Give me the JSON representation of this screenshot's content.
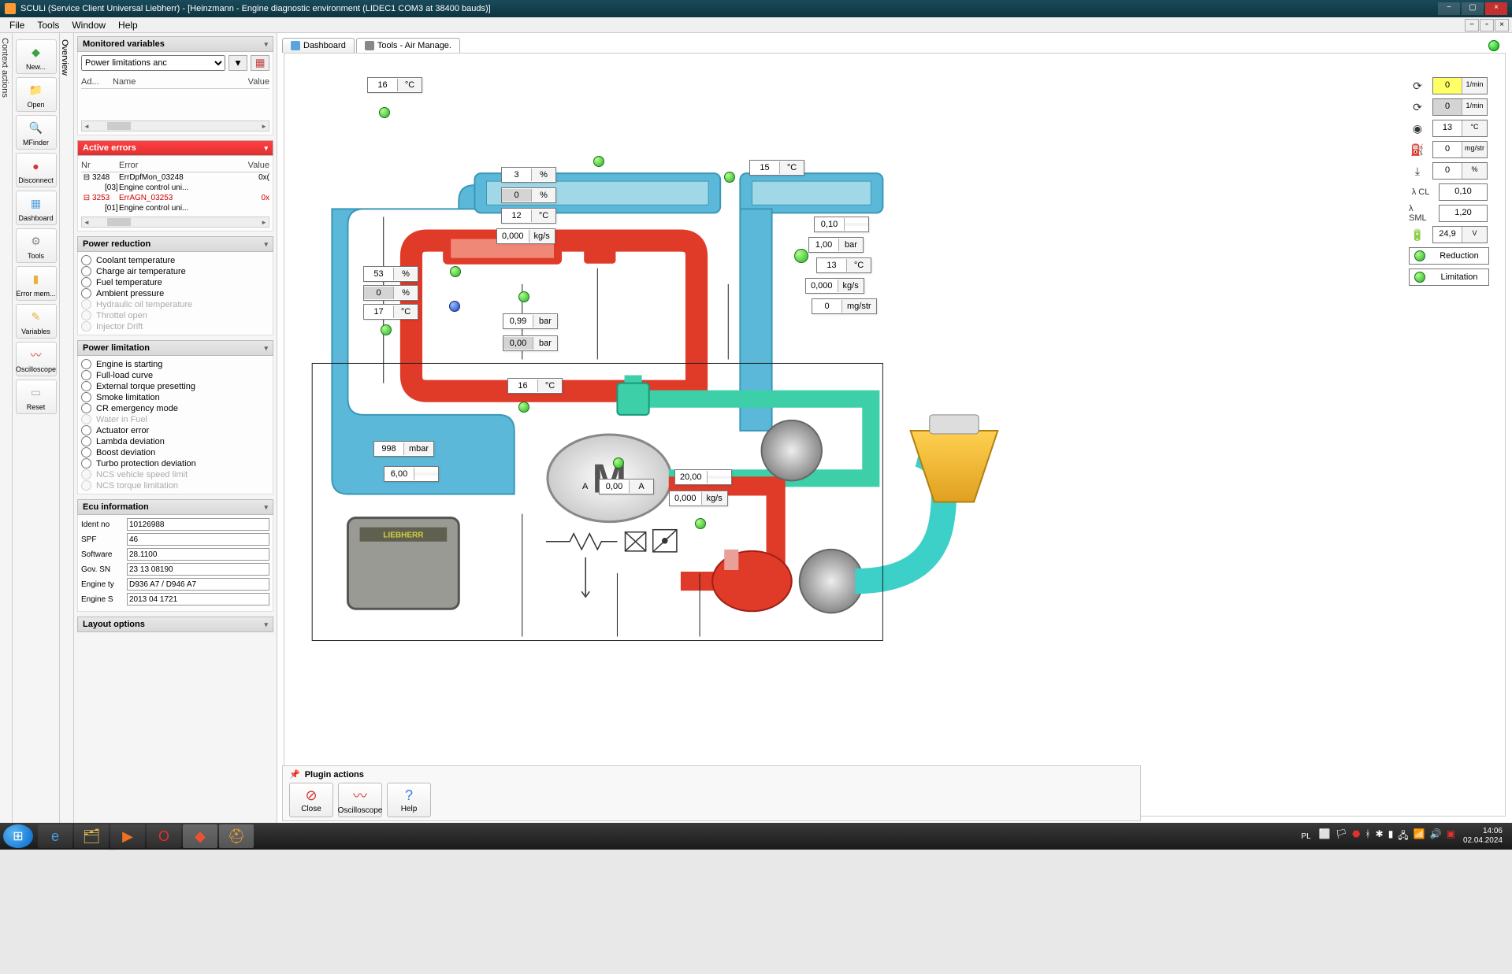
{
  "title": "SCULi (Service Client Universal Liebherr) - [Heinzmann - Engine diagnostic environment (LIDEC1 COM3 at 38400 bauds)]",
  "menu": {
    "file": "File",
    "tools": "Tools",
    "window": "Window",
    "help": "Help"
  },
  "context_label": "Context actions",
  "overview_label": "Overview",
  "toolbar": [
    {
      "label": "New...",
      "color": "#3fa03f",
      "glyph": "◆"
    },
    {
      "label": "Open",
      "color": "#e8b040",
      "glyph": "📁"
    },
    {
      "label": "MFinder",
      "color": "#e8b040",
      "glyph": "🔍"
    },
    {
      "label": "Disconnect",
      "color": "#dd3030",
      "glyph": "●"
    },
    {
      "label": "Dashboard",
      "color": "#5aa5e0",
      "glyph": "▦"
    },
    {
      "label": "Tools",
      "color": "#888",
      "glyph": "⚙"
    },
    {
      "label": "Error mem...",
      "color": "#e8b040",
      "glyph": "▮"
    },
    {
      "label": "Variables",
      "color": "#e8b040",
      "glyph": "✎"
    },
    {
      "label": "Oscilloscope",
      "color": "#d04040",
      "glyph": "〰"
    },
    {
      "label": "Reset",
      "color": "#aaa",
      "glyph": "▭"
    }
  ],
  "monitored": {
    "header": "Monitored variables",
    "dropdown": "Power limitations anc",
    "cols": {
      "c1": "Ad...",
      "c2": "Name",
      "c3": "Value"
    }
  },
  "errors": {
    "header": "Active errors",
    "cols": {
      "c1": "Nr",
      "c2": "Error",
      "c3": "Value"
    },
    "rows": [
      {
        "exp": "⊟",
        "nr": "3248",
        "err": "ErrDpfMon_03248",
        "val": "0x(",
        "red": false
      },
      {
        "exp": "",
        "nr": "[03]",
        "err": "Engine control uni...",
        "val": "",
        "red": false,
        "sub": true
      },
      {
        "exp": "⊟",
        "nr": "3253",
        "err": "ErrAGN_03253",
        "val": "0x",
        "red": true
      },
      {
        "exp": "",
        "nr": "[01]",
        "err": "Engine control uni...",
        "val": "",
        "red": false,
        "sub": true
      }
    ]
  },
  "power_reduction": {
    "header": "Power reduction",
    "items": [
      {
        "label": "Coolant temperature",
        "enabled": true
      },
      {
        "label": "Charge air temperature",
        "enabled": true
      },
      {
        "label": "Fuel temperature",
        "enabled": true
      },
      {
        "label": "Ambient pressure",
        "enabled": true
      },
      {
        "label": "Hydraulic oil temperature",
        "enabled": false
      },
      {
        "label": "Throttel open",
        "enabled": false
      },
      {
        "label": "Injector Drift",
        "enabled": false
      }
    ]
  },
  "power_limitation": {
    "header": "Power limitation",
    "items": [
      {
        "label": "Engine is starting",
        "enabled": true
      },
      {
        "label": "Full-load curve",
        "enabled": true
      },
      {
        "label": "External torque presetting",
        "enabled": true
      },
      {
        "label": "Smoke limitation",
        "enabled": true
      },
      {
        "label": "CR emergency mode",
        "enabled": true
      },
      {
        "label": "Water in Fuel",
        "enabled": false
      },
      {
        "label": "Actuator error",
        "enabled": true
      },
      {
        "label": "Lambda deviation",
        "enabled": true
      },
      {
        "label": "Boost deviation",
        "enabled": true
      },
      {
        "label": "Turbo protection deviation",
        "enabled": true
      },
      {
        "label": "NCS vehicle speed limit",
        "enabled": false
      },
      {
        "label": "NCS torque limitation",
        "enabled": false
      }
    ]
  },
  "ecu": {
    "header": "Ecu information",
    "rows": [
      {
        "label": "Ident no",
        "val": "10126988"
      },
      {
        "label": "SPF",
        "val": "46"
      },
      {
        "label": "Software",
        "val": "28.1100"
      },
      {
        "label": "Gov. SN",
        "val": "23 13 08190"
      },
      {
        "label": "Engine ty",
        "val": "D936 A7 / D946 A7"
      },
      {
        "label": "Engine S",
        "val": "2013 04 1721"
      }
    ]
  },
  "layout_header": "Layout options",
  "tabs": {
    "dashboard": "Dashboard",
    "airmgmt": "Tools - Air Manage."
  },
  "plugin": {
    "header": "Plugin actions",
    "close": "Close",
    "osc": "Oscilloscope",
    "help": "Help"
  },
  "diagram_values": {
    "v_top_left": {
      "v": "16",
      "u": "°C"
    },
    "v_right_15": {
      "v": "15",
      "u": "°C"
    },
    "v_pct3": {
      "v": "3",
      "u": "%"
    },
    "v_pct0a": {
      "v": "0",
      "u": "%"
    },
    "v_12c": {
      "v": "12",
      "u": "°C"
    },
    "v_kgs0a": {
      "v": "0,000",
      "u": "kg/s"
    },
    "v_53": {
      "v": "53",
      "u": "%"
    },
    "v_0b": {
      "v": "0",
      "u": "%"
    },
    "v_17": {
      "v": "17",
      "u": "°C"
    },
    "v_099": {
      "v": "0,99",
      "u": "bar"
    },
    "v_000bar": {
      "v": "0,00",
      "u": "bar"
    },
    "v_16b": {
      "v": "16",
      "u": "°C"
    },
    "v_998": {
      "v": "998",
      "u": "mbar"
    },
    "v_600": {
      "v": "6,00",
      "u": ""
    },
    "v_000A": {
      "v": "0,00",
      "u": "A"
    },
    "v_2000": {
      "v": "20,00",
      "u": ""
    },
    "v_kgs0b": {
      "v": "0,000",
      "u": "kg/s"
    },
    "v_010": {
      "v": "0,10",
      "u": ""
    },
    "v_100bar": {
      "v": "1,00",
      "u": "bar"
    },
    "v_13c": {
      "v": "13",
      "u": "°C"
    },
    "v_kgs0c": {
      "v": "0,000",
      "u": "kg/s"
    },
    "v_0mgstr": {
      "v": "0",
      "u": "mg/str"
    },
    "v_A_label": "A"
  },
  "side": {
    "rows": [
      {
        "icon": "⟳",
        "v": "0",
        "u": "1/min",
        "style": "yellow"
      },
      {
        "icon": "⟳",
        "v": "0",
        "u": "1/min",
        "style": "gray"
      },
      {
        "icon": "◉",
        "v": "13",
        "u": "°C",
        "style": ""
      },
      {
        "icon": "⛽",
        "v": "0",
        "u": "mg/str",
        "style": ""
      },
      {
        "icon": "⤓",
        "v": "0",
        "u": "%",
        "style": ""
      }
    ],
    "cl": {
      "label": "λ CL",
      "v": "0,10"
    },
    "sml": {
      "label": "λ SML",
      "v": "1,20"
    },
    "bat": {
      "icon": "🔋",
      "v": "24,9",
      "u": "V"
    },
    "reduction": "Reduction",
    "limitation": "Limitation"
  },
  "taskbar": {
    "lang": "PL",
    "time": "14:06",
    "date": "02.04.2024"
  }
}
